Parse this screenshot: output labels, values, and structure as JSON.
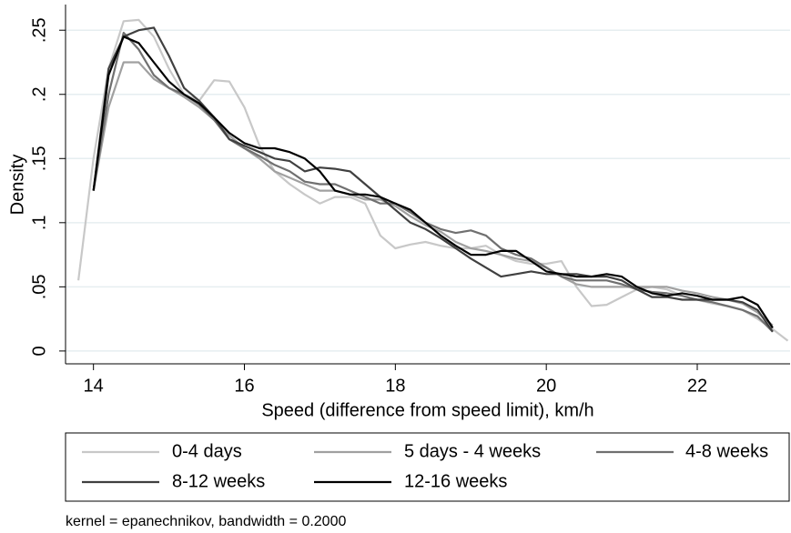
{
  "chart_data": {
    "type": "line",
    "x_label": "Speed (difference from speed limit), km/h",
    "y_label": "Density",
    "note": "kernel = epanechnikov, bandwidth = 0.2000",
    "x": [
      13.8,
      14.0,
      14.2,
      14.4,
      14.6,
      14.8,
      15.0,
      15.2,
      15.4,
      15.6,
      15.8,
      16.0,
      16.2,
      16.4,
      16.6,
      16.8,
      17.0,
      17.2,
      17.4,
      17.6,
      17.8,
      18.0,
      18.2,
      18.4,
      18.6,
      18.8,
      19.0,
      19.2,
      19.4,
      19.6,
      19.8,
      20.0,
      20.2,
      20.4,
      20.6,
      20.8,
      21.0,
      21.2,
      21.4,
      21.6,
      21.8,
      22.0,
      22.2,
      22.4,
      22.6,
      22.8,
      23.0,
      23.2
    ],
    "series": [
      {
        "name": "0-4 days",
        "color": "#c8c8c8",
        "values": [
          0.055,
          0.15,
          0.22,
          0.257,
          0.258,
          0.245,
          0.22,
          0.2,
          0.195,
          0.211,
          0.21,
          0.19,
          0.16,
          0.14,
          0.13,
          0.122,
          0.115,
          0.12,
          0.12,
          0.115,
          0.09,
          0.08,
          0.083,
          0.085,
          0.082,
          0.08,
          0.08,
          0.082,
          0.075,
          0.07,
          0.068,
          0.068,
          0.07,
          0.05,
          0.035,
          0.036,
          0.042,
          0.048,
          0.05,
          0.048,
          0.043,
          0.04,
          0.037,
          0.035,
          0.032,
          0.025,
          0.017,
          0.008
        ]
      },
      {
        "name": "5 days - 4 weeks",
        "color": "#a0a0a0",
        "values": [
          null,
          0.125,
          0.19,
          0.225,
          0.225,
          0.212,
          0.205,
          0.198,
          0.19,
          0.18,
          0.168,
          0.158,
          0.15,
          0.14,
          0.135,
          0.13,
          0.125,
          0.125,
          0.122,
          0.118,
          0.118,
          0.113,
          0.105,
          0.098,
          0.093,
          0.085,
          0.08,
          0.078,
          0.075,
          0.072,
          0.07,
          0.065,
          0.058,
          0.052,
          0.05,
          0.05,
          0.05,
          0.05,
          0.05,
          0.05,
          0.047,
          0.045,
          0.042,
          0.04,
          0.037,
          0.03,
          0.02,
          null
        ]
      },
      {
        "name": "4-8 weeks",
        "color": "#707070",
        "values": [
          null,
          0.125,
          0.2,
          0.248,
          0.235,
          0.215,
          0.205,
          0.2,
          0.192,
          0.18,
          0.165,
          0.158,
          0.152,
          0.145,
          0.14,
          0.132,
          0.13,
          0.13,
          0.125,
          0.12,
          0.115,
          0.115,
          0.108,
          0.1,
          0.095,
          0.092,
          0.094,
          0.09,
          0.08,
          0.075,
          0.072,
          0.065,
          0.058,
          0.055,
          0.055,
          0.055,
          0.052,
          0.048,
          0.046,
          0.045,
          0.043,
          0.04,
          0.038,
          0.035,
          0.032,
          0.027,
          0.015,
          null
        ]
      },
      {
        "name": "8-12 weeks",
        "color": "#404040",
        "values": [
          null,
          0.125,
          0.22,
          0.245,
          0.25,
          0.252,
          0.23,
          0.205,
          0.195,
          0.182,
          0.165,
          0.16,
          0.155,
          0.15,
          0.148,
          0.14,
          0.143,
          0.142,
          0.14,
          0.13,
          0.12,
          0.11,
          0.1,
          0.095,
          0.088,
          0.08,
          0.072,
          0.065,
          0.058,
          0.06,
          0.062,
          0.06,
          0.06,
          0.06,
          0.058,
          0.058,
          0.055,
          0.048,
          0.042,
          0.042,
          0.04,
          0.04,
          0.04,
          0.04,
          0.038,
          0.032,
          0.015,
          null
        ]
      },
      {
        "name": "12-16 weeks",
        "color": "#000000",
        "values": [
          null,
          0.125,
          0.215,
          0.245,
          0.24,
          0.225,
          0.21,
          0.2,
          0.193,
          0.182,
          0.17,
          0.162,
          0.158,
          0.158,
          0.155,
          0.15,
          0.14,
          0.125,
          0.122,
          0.122,
          0.12,
          0.115,
          0.11,
          0.1,
          0.09,
          0.082,
          0.075,
          0.075,
          0.078,
          0.078,
          0.07,
          0.062,
          0.06,
          0.058,
          0.058,
          0.06,
          0.058,
          0.05,
          0.045,
          0.043,
          0.045,
          0.043,
          0.04,
          0.04,
          0.042,
          0.036,
          0.018,
          null
        ]
      }
    ],
    "xlim": [
      13.63,
      23.23
    ],
    "ylim": [
      -0.01,
      0.27
    ],
    "xticks": [
      14,
      16,
      18,
      20,
      22
    ],
    "yticks": [
      0,
      {
        "value": 0.05,
        "label": ".05"
      },
      {
        "value": 0.1,
        "label": ".1"
      },
      {
        "value": 0.15,
        "label": ".15"
      },
      {
        "value": 0.2,
        "label": ".2"
      },
      {
        "value": 0.25,
        "label": ".25"
      }
    ],
    "grid": true,
    "legend": "bottom"
  }
}
